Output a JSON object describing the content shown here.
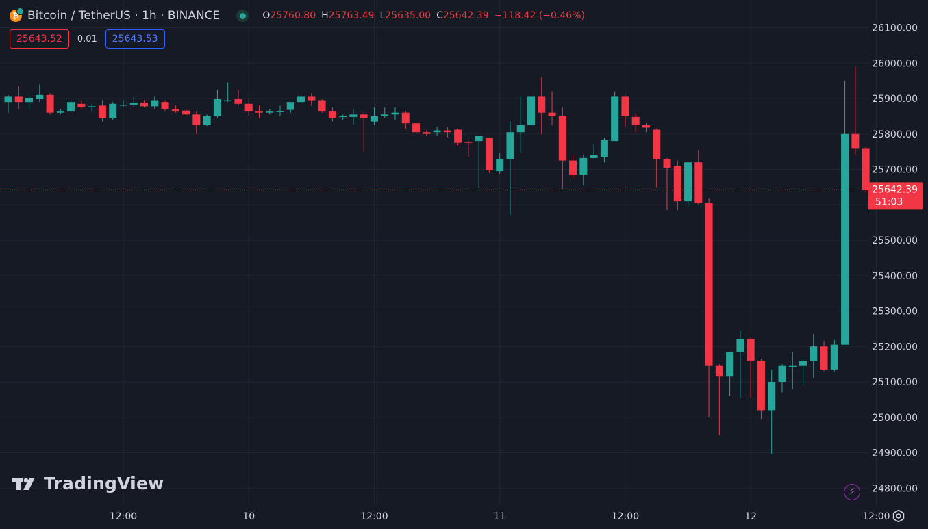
{
  "header": {
    "symbol": "Bitcoin / TetherUS · 1h · BINANCE",
    "ohlc": [
      {
        "key": "O",
        "value": "25760.80"
      },
      {
        "key": "H",
        "value": "25763.49"
      },
      {
        "key": "L",
        "value": "25635.00"
      },
      {
        "key": "C",
        "value": "25642.39"
      },
      {
        "key": "",
        "value": "−118.42 (−0.46%)"
      }
    ]
  },
  "quote": {
    "sell": "25643.52",
    "spread": "0.01",
    "buy": "25643.53"
  },
  "logo_text": "TradingView",
  "price_label": {
    "price": "25642.39",
    "countdown": "51:03"
  },
  "colors": {
    "background": "#161a25",
    "up": "#26a69a",
    "down": "#f23645",
    "grid": "#232632",
    "text": "#d1d4dc"
  },
  "icons": [
    "bitcoin-icon",
    "market-status-icon",
    "tradingview-logo-icon",
    "lightning-icon",
    "settings-gear-icon"
  ],
  "chart_data": {
    "type": "candlestick",
    "interval": "1h",
    "y_axis": {
      "side": "right",
      "ylim": [
        24760,
        26140
      ],
      "ticks": [
        26100,
        26000,
        25900,
        25800,
        25700,
        25600,
        25500,
        25400,
        25300,
        25200,
        25100,
        25000,
        24900,
        24800
      ],
      "tick_labels": [
        "26100.00",
        "26000.00",
        "25900.00",
        "25800.00",
        "25700.00",
        "25600.00",
        "25500.00",
        "25400.00",
        "25300.00",
        "25200.00",
        "25100.00",
        "25000.00",
        "24900.00",
        "24800.00"
      ]
    },
    "x_axis": {
      "tick_labels": [
        "12:00",
        "10",
        "12:00",
        "11",
        "12:00",
        "12",
        "12:00"
      ],
      "tick_bar_index": [
        11,
        23,
        35,
        47,
        59,
        71,
        83
      ]
    },
    "grid": true,
    "last_price": 25642.39,
    "candles": [
      [
        25890,
        25910,
        25860,
        25905
      ],
      [
        25905,
        25935,
        25870,
        25890
      ],
      [
        25890,
        25905,
        25870,
        25902
      ],
      [
        25900,
        25940,
        25890,
        25910
      ],
      [
        25910,
        25915,
        25855,
        25860
      ],
      [
        25860,
        25870,
        25855,
        25865
      ],
      [
        25865,
        25895,
        25860,
        25890
      ],
      [
        25885,
        25895,
        25870,
        25875
      ],
      [
        25875,
        25885,
        25865,
        25878
      ],
      [
        25880,
        25895,
        25835,
        25845
      ],
      [
        25845,
        25890,
        25840,
        25885
      ],
      [
        25880,
        25895,
        25875,
        25882
      ],
      [
        25882,
        25905,
        25875,
        25888
      ],
      [
        25888,
        25895,
        25875,
        25878
      ],
      [
        25878,
        25905,
        25870,
        25895
      ],
      [
        25890,
        25895,
        25865,
        25870
      ],
      [
        25870,
        25880,
        25860,
        25865
      ],
      [
        25866,
        25870,
        25850,
        25855
      ],
      [
        25855,
        25865,
        25800,
        25825
      ],
      [
        25825,
        25855,
        25822,
        25850
      ],
      [
        25850,
        25925,
        25845,
        25898
      ],
      [
        25895,
        25945,
        25890,
        25895
      ],
      [
        25898,
        25925,
        25880,
        25885
      ],
      [
        25885,
        25900,
        25850,
        25865
      ],
      [
        25865,
        25880,
        25845,
        25860
      ],
      [
        25860,
        25870,
        25855,
        25865
      ],
      [
        25862,
        25880,
        25850,
        25865
      ],
      [
        25868,
        25880,
        25860,
        25890
      ],
      [
        25890,
        25915,
        25885,
        25905
      ],
      [
        25905,
        25915,
        25880,
        25895
      ],
      [
        25895,
        25900,
        25860,
        25865
      ],
      [
        25865,
        25875,
        25835,
        25845
      ],
      [
        25848,
        25855,
        25840,
        25850
      ],
      [
        25848,
        25870,
        25825,
        25855
      ],
      [
        25855,
        25860,
        25750,
        25845
      ],
      [
        25835,
        25875,
        25825,
        25850
      ],
      [
        25850,
        25875,
        25845,
        25855
      ],
      [
        25855,
        25875,
        25840,
        25860
      ],
      [
        25860,
        25865,
        25815,
        25830
      ],
      [
        25830,
        25830,
        25800,
        25805
      ],
      [
        25805,
        25810,
        25795,
        25800
      ],
      [
        25805,
        25820,
        25795,
        25810
      ],
      [
        25810,
        25820,
        25790,
        25805
      ],
      [
        25812,
        25815,
        25768,
        25775
      ],
      [
        25778,
        25780,
        25735,
        25775
      ],
      [
        25780,
        25790,
        25650,
        25795
      ],
      [
        25790,
        25790,
        25690,
        25698
      ],
      [
        25695,
        25745,
        25688,
        25730
      ],
      [
        25730,
        25835,
        25572,
        25805
      ],
      [
        25805,
        25905,
        25745,
        25825
      ],
      [
        25825,
        25915,
        25818,
        25905
      ],
      [
        25905,
        25960,
        25800,
        25860
      ],
      [
        25860,
        25920,
        25825,
        25850
      ],
      [
        25850,
        25875,
        25645,
        25725
      ],
      [
        25725,
        25742,
        25675,
        25685
      ],
      [
        25685,
        25742,
        25655,
        25732
      ],
      [
        25732,
        25770,
        25730,
        25740
      ],
      [
        25735,
        25790,
        25720,
        25782
      ],
      [
        25780,
        25920,
        25780,
        25905
      ],
      [
        25905,
        25910,
        25820,
        25850
      ],
      [
        25848,
        25858,
        25805,
        25825
      ],
      [
        25825,
        25830,
        25805,
        25818
      ],
      [
        25812,
        25815,
        25650,
        25730
      ],
      [
        25730,
        25732,
        25585,
        25705
      ],
      [
        25710,
        25725,
        25585,
        25610
      ],
      [
        25610,
        25720,
        25595,
        25720
      ],
      [
        25720,
        25755,
        25600,
        25605
      ],
      [
        25605,
        25618,
        25000,
        25145
      ],
      [
        25145,
        25150,
        24950,
        25115
      ],
      [
        25115,
        25185,
        25060,
        25185
      ],
      [
        25185,
        25245,
        25055,
        25220
      ],
      [
        25220,
        25225,
        25055,
        25160
      ],
      [
        25160,
        25165,
        24995,
        25020
      ],
      [
        25020,
        25135,
        24895,
        25100
      ],
      [
        25100,
        25150,
        25070,
        25145
      ],
      [
        25142,
        25185,
        25080,
        25145
      ],
      [
        25145,
        25165,
        25090,
        25158
      ],
      [
        25158,
        25235,
        25112,
        25200
      ],
      [
        25200,
        25215,
        25130,
        25135
      ],
      [
        25135,
        25218,
        25130,
        25205
      ],
      [
        25205,
        25950,
        25205,
        25800
      ],
      [
        25800,
        25990,
        25740,
        25760
      ],
      [
        25760,
        25763,
        25635,
        25642
      ]
    ]
  }
}
